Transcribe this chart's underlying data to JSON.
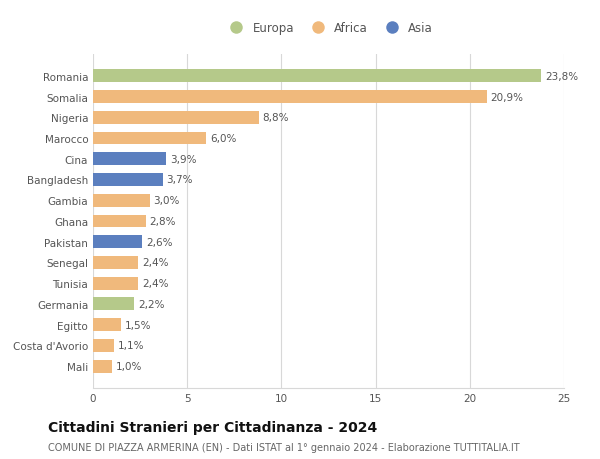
{
  "countries": [
    "Romania",
    "Somalia",
    "Nigeria",
    "Marocco",
    "Cina",
    "Bangladesh",
    "Gambia",
    "Ghana",
    "Pakistan",
    "Senegal",
    "Tunisia",
    "Germania",
    "Egitto",
    "Costa d'Avorio",
    "Mali"
  ],
  "values": [
    23.8,
    20.9,
    8.8,
    6.0,
    3.9,
    3.7,
    3.0,
    2.8,
    2.6,
    2.4,
    2.4,
    2.2,
    1.5,
    1.1,
    1.0
  ],
  "labels": [
    "23,8%",
    "20,9%",
    "8,8%",
    "6,0%",
    "3,9%",
    "3,7%",
    "3,0%",
    "2,8%",
    "2,6%",
    "2,4%",
    "2,4%",
    "2,2%",
    "1,5%",
    "1,1%",
    "1,0%"
  ],
  "continents": [
    "Europa",
    "Africa",
    "Africa",
    "Africa",
    "Asia",
    "Asia",
    "Africa",
    "Africa",
    "Asia",
    "Africa",
    "Africa",
    "Europa",
    "Africa",
    "Africa",
    "Africa"
  ],
  "colors": {
    "Europa": "#b5c98a",
    "Africa": "#f0b97c",
    "Asia": "#5b7fbf"
  },
  "legend_order": [
    "Europa",
    "Africa",
    "Asia"
  ],
  "title": "Cittadini Stranieri per Cittadinanza - 2024",
  "subtitle": "COMUNE DI PIAZZA ARMERINA (EN) - Dati ISTAT al 1° gennaio 2024 - Elaborazione TUTTITALIA.IT",
  "xlim": [
    0,
    25
  ],
  "xticks": [
    0,
    5,
    10,
    15,
    20,
    25
  ],
  "bg_color": "#ffffff",
  "grid_color": "#d8d8d8",
  "bar_height": 0.62,
  "label_fontsize": 7.5,
  "tick_fontsize": 7.5,
  "title_fontsize": 10,
  "subtitle_fontsize": 7.0
}
